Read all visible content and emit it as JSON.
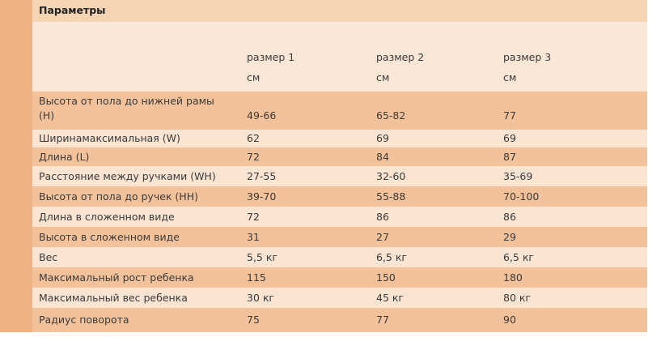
{
  "header": {
    "title": "Параметры"
  },
  "table": {
    "columns": [
      "размер 1",
      "размер 2",
      "размер 3"
    ],
    "units": [
      "см",
      "см",
      "см"
    ],
    "rows": [
      [
        "Высота от пола до нижней рамы (H)",
        "49-66",
        "65-82",
        "77"
      ],
      [
        "Ширинамаксимальная (W)",
        "62",
        "69",
        "69"
      ],
      [
        "Длина (L)",
        "72",
        "84",
        "87"
      ],
      [
        "Расстояние между ручками (WH)",
        "27-55",
        "32-60",
        "35-69"
      ],
      [
        "Высота от пола до ручек (HH)",
        "39-70",
        "55-88",
        "70-100"
      ],
      [
        "Длина в сложенном виде",
        "72",
        "86",
        "86"
      ],
      [
        "Высота в сложенном виде",
        "31",
        "27",
        "29"
      ],
      [
        "Вес",
        "5,5 кг",
        "6,5 кг",
        "6,5 кг"
      ],
      [
        "Максимальный рост ребенка",
        "115",
        "150",
        "180"
      ],
      [
        "Максимальный вес ребенка",
        "30 кг",
        "45 кг",
        "80 кг"
      ],
      [
        "Радиус поворота",
        "75",
        "77",
        "90"
      ]
    ]
  }
}
